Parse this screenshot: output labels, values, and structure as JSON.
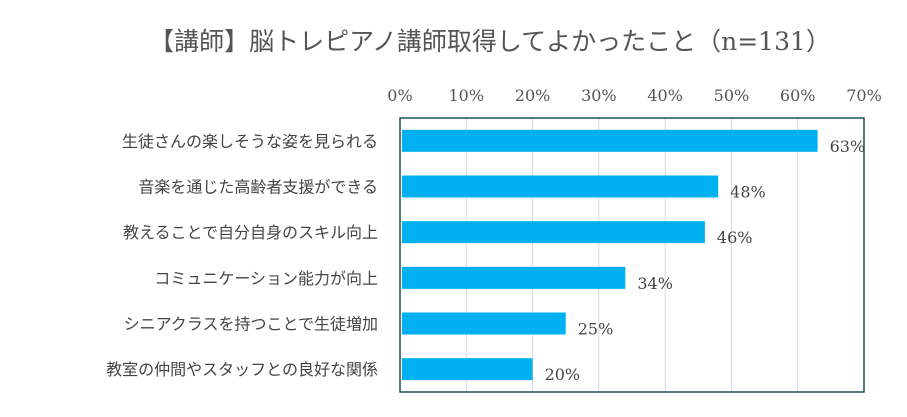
{
  "chart_data": {
    "type": "bar",
    "orientation": "horizontal",
    "title": "【講師】脳トレピアノ講師取得してよかったこと（n=131）",
    "categories": [
      "生徒さんの楽しそうな姿を見られる",
      "音楽を通じた高齢者支援ができる",
      "教えることで自分自身のスキル向上",
      "コミュニケーション能力が向上",
      "シニアクラスを持つことで生徒増加",
      "教室の仲間やスタッフとの良好な関係"
    ],
    "values": [
      63,
      48,
      46,
      34,
      25,
      20
    ],
    "data_labels": [
      "63%",
      "48%",
      "46%",
      "34%",
      "25%",
      "20%"
    ],
    "xlim": [
      0,
      70
    ],
    "x_ticks": [
      0,
      10,
      20,
      30,
      40,
      50,
      60,
      70
    ],
    "x_tick_labels": [
      "0%",
      "10%",
      "20%",
      "30%",
      "40%",
      "50%",
      "60%",
      "70%"
    ],
    "x_axis_position": "top",
    "grid": true,
    "legend": "none",
    "colors": {
      "bar": "#00B0F0",
      "grid": "#D9D9D9",
      "frame": "#1F4E5F"
    }
  }
}
